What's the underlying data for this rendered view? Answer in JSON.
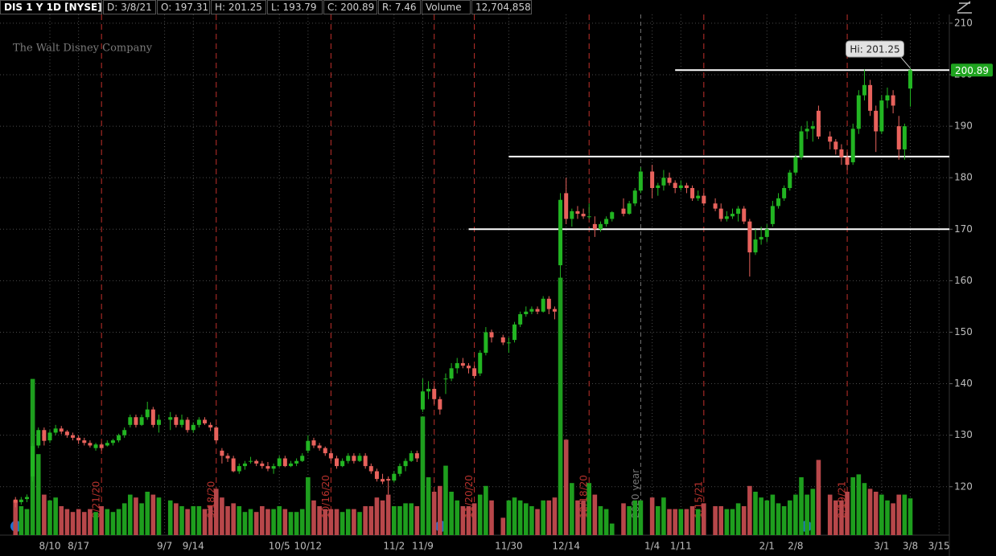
{
  "chart_data": {
    "type": "candlestick",
    "header": [
      "DIS 1 Y 1D [NYSE]",
      "D: 3/8/21",
      "O: 197.31",
      "H: 201.25",
      "L: 193.79",
      "C: 200.89",
      "R: 7.46",
      "Volume",
      "12,704,858"
    ],
    "watermark": "The Walt Disney Company",
    "hi_label": "Hi: 201.25",
    "up_color": "#22b522",
    "down_color": "#e8625c",
    "vol_up_color": "#1e9e1e",
    "vol_down_color": "#b8474a",
    "ylim": [
      110.6,
      211.7
    ],
    "yticks": [
      120,
      130,
      140,
      150,
      160,
      170,
      180,
      190,
      200,
      210
    ],
    "vlim": [
      0,
      100000000
    ],
    "xticks": [
      "8/10",
      "8/17",
      "9/7",
      "9/14",
      "10/5",
      "10/12",
      "11/2",
      "11/9",
      "11/30",
      "12/14",
      "1/4",
      "1/11",
      "2/1",
      "2/8",
      "3/1",
      "3/8",
      "3/15"
    ],
    "grid": true,
    "levels": [
      {
        "value": 200.89,
        "from": "1/8"
      },
      {
        "value": 184.1,
        "from": "11/30"
      },
      {
        "value": 170,
        "from": "11/19"
      }
    ],
    "event_lines": [
      {
        "date": "8/21",
        "label": "8/21/20"
      },
      {
        "date": "9/18",
        "label": "9/18/20"
      },
      {
        "date": "10/16",
        "label": "10/16/20"
      },
      {
        "date": "11/11"
      },
      {
        "date": "11/20",
        "label": "11/20/20"
      },
      {
        "date": "12/18",
        "label": "12/18/20"
      },
      {
        "date": "1/15",
        "label": "1/15/21"
      },
      {
        "date": "2/19",
        "label": "2/19/21"
      }
    ],
    "year_line": {
      "date": "12/31",
      "label": "2020 year"
    },
    "candles": [
      [
        "7/31",
        117.5,
        118,
        116,
        116.9,
        12000000
      ],
      [
        "8/3",
        117,
        118,
        116.5,
        117.5,
        10000000
      ],
      [
        "8/4",
        117.6,
        118.5,
        117,
        118,
        9000000
      ],
      [
        "8/5",
        122,
        128.5,
        121,
        127.9,
        54000000
      ],
      [
        "8/6",
        128,
        131.5,
        127.5,
        131,
        28000000
      ],
      [
        "8/7",
        131,
        131.5,
        128,
        128.9,
        14000000
      ],
      [
        "8/10",
        129,
        131,
        128.5,
        130.5,
        12000000
      ],
      [
        "8/11",
        130.5,
        132,
        130,
        131.3,
        13000000
      ],
      [
        "8/12",
        131.3,
        131.8,
        130.2,
        130.7,
        10000000
      ],
      [
        "8/13",
        130.7,
        131,
        129.5,
        130,
        9000000
      ],
      [
        "8/14",
        130,
        130.5,
        129,
        129.5,
        8000000
      ],
      [
        "8/17",
        129.5,
        130,
        128.3,
        129,
        9000000
      ],
      [
        "8/18",
        129,
        129.5,
        128,
        128.5,
        8000000
      ],
      [
        "8/19",
        128.5,
        129,
        127.6,
        128,
        9000000
      ],
      [
        "8/20",
        127.5,
        128.5,
        127,
        128.2,
        8000000
      ],
      [
        "8/21",
        128.2,
        128.5,
        127,
        127.5,
        10000000
      ],
      [
        "8/24",
        128,
        129,
        127.8,
        128.5,
        9000000
      ],
      [
        "8/25",
        128.5,
        129.3,
        128,
        129,
        8000000
      ],
      [
        "8/26",
        129,
        130.3,
        128.6,
        130,
        9000000
      ],
      [
        "8/27",
        130,
        131.5,
        129.5,
        131,
        11000000
      ],
      [
        "8/28",
        132,
        134,
        131.5,
        133.5,
        14000000
      ],
      [
        "8/31",
        133.5,
        134,
        131.5,
        132,
        13000000
      ],
      [
        "9/1",
        132,
        134,
        131.8,
        133.5,
        11000000
      ],
      [
        "9/2",
        133.5,
        136.5,
        133,
        135,
        15000000
      ],
      [
        "9/3",
        135,
        135.5,
        131.5,
        132,
        14000000
      ],
      [
        "9/4",
        132,
        134,
        130.5,
        133,
        13000000
      ],
      [
        "9/8",
        133,
        134.5,
        131,
        133.5,
        12000000
      ],
      [
        "9/9",
        133.5,
        134,
        131.5,
        132,
        11000000
      ],
      [
        "9/10",
        132,
        134,
        131.5,
        133,
        10000000
      ],
      [
        "9/11",
        133,
        133.5,
        130.5,
        131,
        9000000
      ],
      [
        "9/14",
        131,
        132.5,
        130.5,
        132,
        10000000
      ],
      [
        "9/15",
        132,
        133.5,
        131.5,
        133,
        10000000
      ],
      [
        "9/16",
        133,
        133.5,
        132,
        132.3,
        9000000
      ],
      [
        "9/17",
        132,
        132.5,
        130.8,
        131.5,
        10000000
      ],
      [
        "9/18",
        131.5,
        131.8,
        128.5,
        129,
        16000000
      ],
      [
        "9/21",
        127,
        127.5,
        124.5,
        126,
        13000000
      ],
      [
        "9/22",
        126,
        126.5,
        124.8,
        125.5,
        10000000
      ],
      [
        "9/23",
        125.5,
        126,
        122.8,
        123,
        11000000
      ],
      [
        "9/24",
        123,
        124.5,
        122.5,
        124,
        10000000
      ],
      [
        "9/25",
        124,
        125,
        123.3,
        124.5,
        8000000
      ],
      [
        "9/28",
        125,
        125.8,
        124.5,
        125,
        9000000
      ],
      [
        "9/29",
        125,
        125.3,
        124,
        124.5,
        8000000
      ],
      [
        "9/30",
        124.5,
        125,
        123.5,
        124,
        10000000
      ],
      [
        "10/1",
        124,
        124.8,
        123,
        123.5,
        9000000
      ],
      [
        "10/2",
        123.5,
        124.5,
        122.5,
        124,
        9000000
      ],
      [
        "10/5",
        124,
        126,
        123.8,
        125.5,
        10000000
      ],
      [
        "10/6",
        125.5,
        126,
        123.8,
        124,
        9000000
      ],
      [
        "10/7",
        124,
        125,
        123.8,
        124.5,
        8000000
      ],
      [
        "10/8",
        124.5,
        125.5,
        124,
        125,
        8000000
      ],
      [
        "10/9",
        125,
        126.5,
        124.8,
        126,
        9000000
      ],
      [
        "10/12",
        127,
        130,
        126.5,
        128.9,
        20000000
      ],
      [
        "10/13",
        129,
        129.5,
        127.5,
        128,
        12000000
      ],
      [
        "10/14",
        128,
        128.5,
        127,
        127.5,
        10000000
      ],
      [
        "10/15",
        127.5,
        127.8,
        126,
        126.5,
        9000000
      ],
      [
        "10/16",
        126.5,
        127,
        125,
        125.5,
        9000000
      ],
      [
        "10/19",
        125.5,
        126,
        123.5,
        124,
        9000000
      ],
      [
        "10/20",
        124,
        125.5,
        123.8,
        125,
        8000000
      ],
      [
        "10/21",
        125,
        126.5,
        124.5,
        126,
        9000000
      ],
      [
        "10/22",
        126,
        126.5,
        124.5,
        125,
        9000000
      ],
      [
        "10/23",
        125,
        126.5,
        124.8,
        126,
        8000000
      ],
      [
        "10/26",
        126,
        126.5,
        123.5,
        124,
        10000000
      ],
      [
        "10/27",
        124,
        124.5,
        122.5,
        123,
        10000000
      ],
      [
        "10/28",
        123,
        123.5,
        121,
        121.5,
        13000000
      ],
      [
        "10/29",
        121.5,
        122.5,
        120.5,
        121,
        12000000
      ],
      [
        "10/30",
        121.5,
        122,
        118.5,
        121.2,
        14000000
      ],
      [
        "11/2",
        121.2,
        123,
        120.8,
        122.5,
        10000000
      ],
      [
        "11/3",
        122.5,
        124.5,
        122,
        124,
        10000000
      ],
      [
        "11/4",
        124,
        125.5,
        123,
        125,
        11000000
      ],
      [
        "11/5",
        125,
        127,
        124.8,
        126.5,
        11000000
      ],
      [
        "11/6",
        126.5,
        127,
        124.8,
        125.5,
        10000000
      ],
      [
        "11/9",
        135,
        141,
        134.5,
        138.5,
        41000000
      ],
      [
        "11/10",
        138.5,
        140.5,
        137,
        139,
        20000000
      ],
      [
        "11/11",
        139,
        139.5,
        136,
        137,
        15000000
      ],
      [
        "11/12",
        137,
        137.5,
        134,
        135,
        17000000
      ],
      [
        "11/13",
        141,
        142,
        138,
        141,
        24000000
      ],
      [
        "11/16",
        141,
        144,
        140.5,
        143,
        15000000
      ],
      [
        "11/17",
        143,
        145,
        142,
        144,
        12000000
      ],
      [
        "11/18",
        144,
        145,
        143,
        143.5,
        10000000
      ],
      [
        "11/19",
        143.5,
        144,
        142,
        143,
        10000000
      ],
      [
        "11/20",
        143,
        143.5,
        141,
        141.5,
        11000000
      ],
      [
        "11/23",
        142,
        146.5,
        141.5,
        146,
        14000000
      ],
      [
        "11/24",
        146,
        151,
        145.5,
        150,
        17000000
      ],
      [
        "11/25",
        150,
        150.5,
        148,
        149,
        12000000
      ],
      [
        "11/27",
        149,
        149.5,
        147.5,
        148,
        6000000
      ],
      [
        "11/30",
        148,
        149,
        146,
        148,
        12000000
      ],
      [
        "12/1",
        148.5,
        152,
        148,
        151.5,
        13000000
      ],
      [
        "12/2",
        151.5,
        154,
        151,
        153.5,
        12000000
      ],
      [
        "12/3",
        153.5,
        155,
        153,
        154,
        11000000
      ],
      [
        "12/4",
        154,
        155,
        153.5,
        154.5,
        10000000
      ],
      [
        "12/7",
        154.5,
        155,
        153.5,
        154,
        9000000
      ],
      [
        "12/8",
        154,
        157,
        153.8,
        156.5,
        12000000
      ],
      [
        "12/9",
        156.5,
        157,
        153.5,
        154.5,
        12000000
      ],
      [
        "12/10",
        154.5,
        155,
        152.5,
        154,
        13000000
      ],
      [
        "12/11",
        163,
        177,
        160.5,
        175.7,
        89000000
      ],
      [
        "12/14",
        177,
        180,
        171,
        172,
        33000000
      ],
      [
        "12/15",
        172,
        174,
        170.5,
        173.5,
        18000000
      ],
      [
        "12/16",
        173.5,
        174.5,
        172,
        173,
        12000000
      ],
      [
        "12/17",
        173,
        174,
        172,
        172.5,
        12000000
      ],
      [
        "12/18",
        172.5,
        175,
        172,
        172.5,
        18000000
      ],
      [
        "12/21",
        171,
        172.5,
        168.5,
        170,
        14000000
      ],
      [
        "12/22",
        170,
        171.5,
        169.5,
        171,
        10000000
      ],
      [
        "12/23",
        171,
        172.5,
        170.5,
        172,
        9000000
      ],
      [
        "12/24",
        172,
        173.5,
        171.5,
        173.3,
        4000000
      ],
      [
        "12/28",
        174,
        176,
        172.5,
        173,
        11000000
      ],
      [
        "12/29",
        173,
        175.5,
        172.8,
        175,
        10000000
      ],
      [
        "12/30",
        175,
        178,
        174.5,
        177.5,
        12000000
      ],
      [
        "12/31",
        177.5,
        182,
        177,
        181.2,
        12000000
      ],
      [
        "1/4",
        181.2,
        182.5,
        176,
        178,
        13000000
      ],
      [
        "1/5",
        178,
        179,
        176.5,
        178.5,
        10000000
      ],
      [
        "1/6",
        178.5,
        181.5,
        177.5,
        180,
        13000000
      ],
      [
        "1/7",
        180,
        181,
        178.5,
        179,
        9000000
      ],
      [
        "1/8",
        179,
        179.5,
        177,
        178,
        9000000
      ],
      [
        "1/11",
        178,
        179.5,
        177.5,
        178.5,
        9000000
      ],
      [
        "1/12",
        178.5,
        179,
        177,
        178,
        9000000
      ],
      [
        "1/13",
        178,
        178.5,
        175.5,
        176,
        10000000
      ],
      [
        "1/14",
        176,
        177.5,
        175.5,
        176.5,
        9000000
      ],
      [
        "1/15",
        176.5,
        177,
        174.5,
        175,
        11000000
      ],
      [
        "1/19",
        175,
        176,
        173.5,
        174,
        10000000
      ],
      [
        "1/20",
        174,
        175,
        171.5,
        172,
        10000000
      ],
      [
        "1/21",
        172,
        173.5,
        171.5,
        172.5,
        9000000
      ],
      [
        "1/22",
        172.5,
        174,
        172,
        173,
        9000000
      ],
      [
        "1/25",
        173,
        174.5,
        171.5,
        174,
        11000000
      ],
      [
        "1/26",
        174,
        174.5,
        171,
        171.5,
        10000000
      ],
      [
        "1/27",
        171.5,
        172,
        160.8,
        165.5,
        17000000
      ],
      [
        "1/28",
        165.5,
        170,
        165,
        168,
        15000000
      ],
      [
        "1/29",
        168,
        170.5,
        167,
        168.5,
        13000000
      ],
      [
        "2/1",
        168.5,
        171,
        167.5,
        170,
        12000000
      ],
      [
        "2/2",
        171,
        175.5,
        170.5,
        174.5,
        14000000
      ],
      [
        "2/3",
        174.5,
        177,
        174,
        176,
        11000000
      ],
      [
        "2/4",
        176,
        178.5,
        175.5,
        178,
        10000000
      ],
      [
        "2/5",
        178,
        181.5,
        177.5,
        181,
        12000000
      ],
      [
        "2/8",
        181,
        184.5,
        180.5,
        184,
        14000000
      ],
      [
        "2/9",
        184,
        190,
        183.5,
        189,
        20000000
      ],
      [
        "2/10",
        189,
        191,
        187.5,
        189.5,
        14000000
      ],
      [
        "2/11",
        189.5,
        191,
        187,
        190,
        16000000
      ],
      [
        "2/12",
        193,
        194,
        187.5,
        188,
        26000000
      ],
      [
        "2/16",
        188,
        189,
        185.5,
        187,
        14000000
      ],
      [
        "2/17",
        187,
        187.5,
        184.5,
        185.5,
        12000000
      ],
      [
        "2/18",
        185.5,
        186.5,
        182.5,
        184,
        12000000
      ],
      [
        "2/19",
        184,
        185,
        181.5,
        182.5,
        15000000
      ],
      [
        "2/22",
        183,
        190.5,
        182.5,
        189.5,
        20000000
      ],
      [
        "2/23",
        189.5,
        197,
        188.5,
        196,
        21000000
      ],
      [
        "2/24",
        196,
        201,
        195,
        198,
        18000000
      ],
      [
        "2/25",
        198,
        199,
        192,
        193,
        16000000
      ],
      [
        "2/26",
        193,
        194,
        185,
        189,
        15000000
      ],
      [
        "3/1",
        189,
        196,
        188.5,
        195,
        14000000
      ],
      [
        "3/2",
        195,
        197.5,
        193.5,
        196,
        12000000
      ],
      [
        "3/3",
        196,
        197,
        192.5,
        194,
        11000000
      ],
      [
        "3/4",
        190,
        192,
        183.5,
        185.5,
        14000000
      ],
      [
        "3/5",
        185.5,
        190.5,
        183.5,
        190,
        14000000
      ],
      [
        "3/8",
        197.31,
        201.25,
        193.79,
        200.89,
        12704858
      ]
    ]
  }
}
